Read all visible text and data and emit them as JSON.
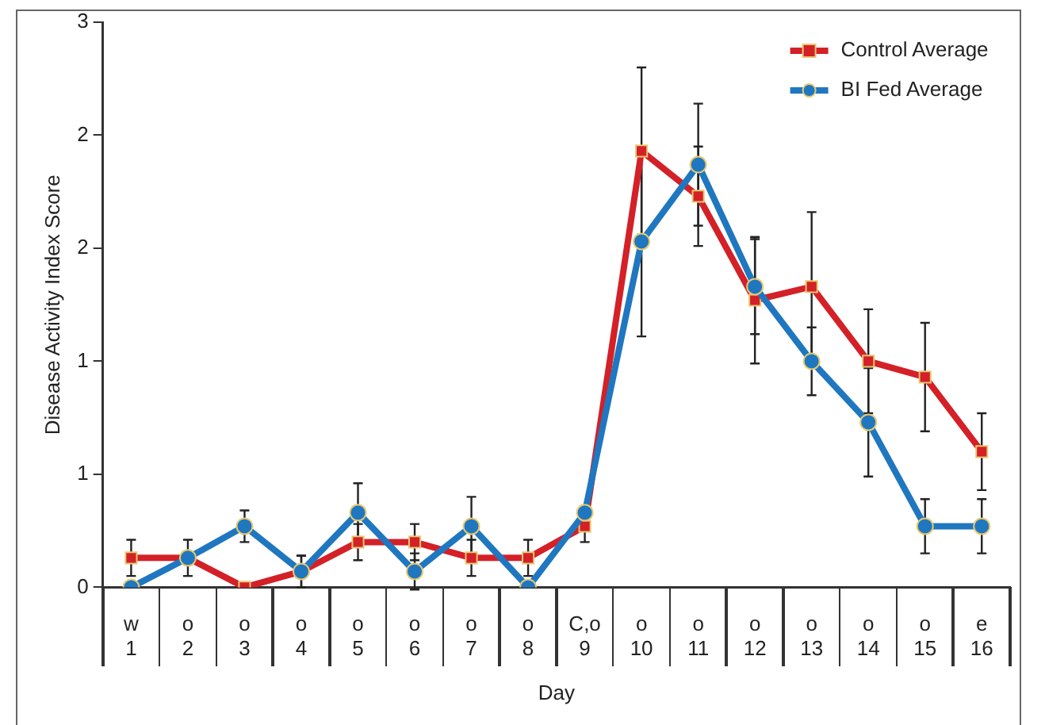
{
  "chart_data": {
    "type": "line",
    "xlabel": "Day",
    "ylabel": "Disease Activity Index Score",
    "categories": [
      "w\n1",
      "o\n2",
      "o\n3",
      "o\n4",
      "o\n5",
      "o\n6",
      "o\n7",
      "o\n8",
      "C,o\n9",
      "o\n10",
      "o\n11",
      "o\n12",
      "o\n13",
      "o\n14",
      "o\n15",
      "e\n16"
    ],
    "series": [
      {
        "name": "Control Average",
        "color": "#d42027",
        "marker": "square",
        "values": [
          0.13,
          0.13,
          0,
          0.07,
          0.2,
          0.2,
          0.13,
          0.13,
          0.27,
          1.93,
          1.73,
          1.27,
          1.33,
          1.0,
          0.93,
          0.6
        ],
        "errors": [
          0.08,
          0.08,
          null,
          0.07,
          0.08,
          0.08,
          0.08,
          0.08,
          0.07,
          0.37,
          0.22,
          0.28,
          0.33,
          0.23,
          0.24,
          0.17
        ]
      },
      {
        "name": "BI Fed Average",
        "color": "#1f77c0",
        "marker": "circle",
        "values": [
          0,
          0.13,
          0.27,
          0.07,
          0.33,
          0.07,
          0.27,
          0,
          0.33,
          1.53,
          1.87,
          1.33,
          1.0,
          0.73,
          0.27,
          0.27
        ],
        "errors": [
          null,
          null,
          0.07,
          0.07,
          0.13,
          0.08,
          0.13,
          null,
          null,
          0.42,
          0.27,
          0.21,
          0.15,
          0.24,
          0.12,
          0.12
        ]
      }
    ],
    "ylim": [
      0,
      2.5
    ],
    "yticks": [
      0,
      {
        "value": 0.5,
        "label": "1"
      },
      1,
      {
        "value": 1.5,
        "label": "2"
      },
      2,
      {
        "value": 2.5,
        "label": "3"
      }
    ],
    "grid": false,
    "legend": "top right",
    "line_style": "solid"
  }
}
